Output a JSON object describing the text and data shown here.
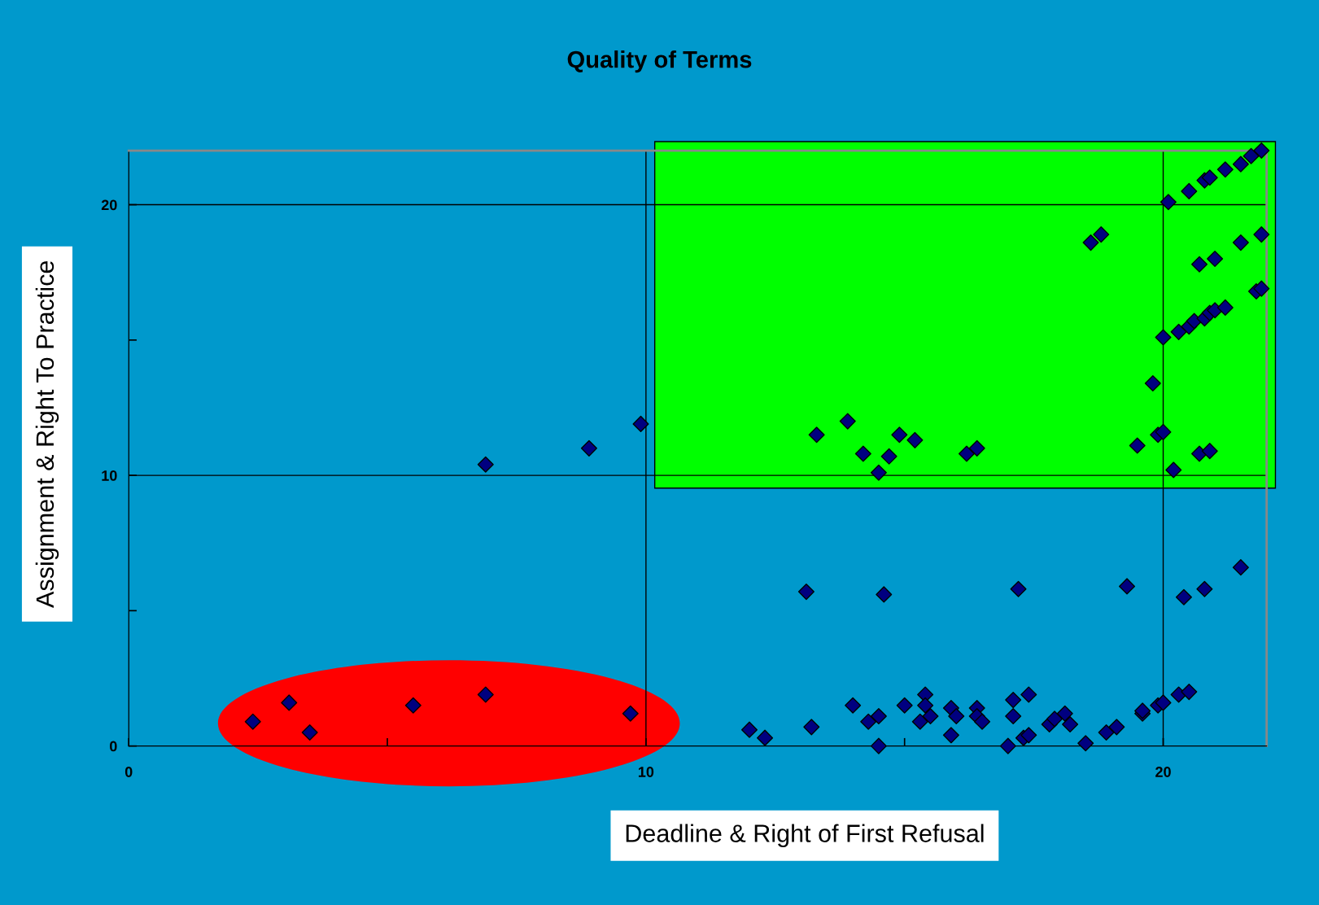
{
  "chart_data": {
    "type": "scatter",
    "title": "Quality of Terms",
    "xlabel": "Deadline & Right of First Refusal",
    "ylabel": "Assignment & Right To Practice",
    "xlim": [
      0,
      22
    ],
    "ylim": [
      0,
      22
    ],
    "xticks": [
      0,
      {
        "value": 5,
        "label": null
      },
      10,
      {
        "value": 15,
        "label": null
      },
      20
    ],
    "yticks": [
      0,
      {
        "value": 5,
        "label": null
      },
      10,
      {
        "value": 15,
        "label": null
      },
      20
    ],
    "grid": true,
    "marker": "diamond",
    "legend": false,
    "series": [
      {
        "color": "#000080",
        "x": [
          2.4,
          3.1,
          3.5,
          5.5,
          6.9,
          6.9,
          8.9,
          9.7,
          9.9,
          12.0,
          12.3,
          13.1,
          13.2,
          13.3,
          13.9,
          14.0,
          14.2,
          14.3,
          14.5,
          14.5,
          14.5,
          14.6,
          14.7,
          14.9,
          15.0,
          15.2,
          15.3,
          15.4,
          15.4,
          15.5,
          15.9,
          15.9,
          16.0,
          16.2,
          16.4,
          16.4,
          16.4,
          16.5,
          17.0,
          17.1,
          17.1,
          17.2,
          17.3,
          17.4,
          17.4,
          17.8,
          17.9,
          18.1,
          18.2,
          18.5,
          18.6,
          18.8,
          18.9,
          19.1,
          19.3,
          19.5,
          19.6,
          19.6,
          19.8,
          19.9,
          19.9,
          20.0,
          20.0,
          20.0,
          20.1,
          20.2,
          20.3,
          20.3,
          20.4,
          20.5,
          20.5,
          20.5,
          20.6,
          20.7,
          20.7,
          20.8,
          20.8,
          20.8,
          20.9,
          20.9,
          20.9,
          21.0,
          21.0,
          21.2,
          21.2,
          21.5,
          21.5,
          21.5,
          21.7,
          21.8,
          21.9,
          21.9,
          21.9
        ],
        "values": [
          0.9,
          1.6,
          0.5,
          1.5,
          10.4,
          1.9,
          11.0,
          1.2,
          11.9,
          0.6,
          0.3,
          5.7,
          0.7,
          11.5,
          12.0,
          1.5,
          10.8,
          0.9,
          1.1,
          0.0,
          10.1,
          5.6,
          10.7,
          11.5,
          1.5,
          11.3,
          0.9,
          1.9,
          1.5,
          1.1,
          0.4,
          1.4,
          1.1,
          10.8,
          1.4,
          11.0,
          1.1,
          0.9,
          0.0,
          1.1,
          1.7,
          5.8,
          0.3,
          0.4,
          1.9,
          0.8,
          1.0,
          1.2,
          0.8,
          0.1,
          18.6,
          18.9,
          0.5,
          0.7,
          5.9,
          11.1,
          1.2,
          1.3,
          13.4,
          11.5,
          1.5,
          1.6,
          11.6,
          15.1,
          20.1,
          10.2,
          15.3,
          1.9,
          5.5,
          20.5,
          15.5,
          2.0,
          15.7,
          17.8,
          10.8,
          5.8,
          20.9,
          15.8,
          10.9,
          21.0,
          16.0,
          18.0,
          16.1,
          16.2,
          21.3,
          21.5,
          18.6,
          6.6,
          21.8,
          16.8,
          18.9,
          16.9,
          22.0
        ]
      }
    ]
  }
}
